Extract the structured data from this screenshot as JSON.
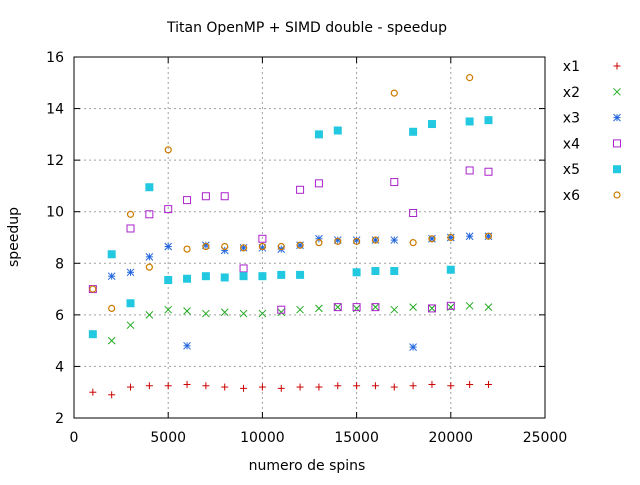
{
  "chart_data": {
    "type": "scatter",
    "title": "Titan OpenMP + SIMD double - speedup",
    "xlabel": "numero de spins",
    "ylabel": "speedup",
    "xlim": [
      0,
      25000
    ],
    "ylim": [
      2,
      16
    ],
    "xticks": [
      0,
      5000,
      10000,
      15000,
      20000,
      25000
    ],
    "yticks": [
      2,
      4,
      6,
      8,
      10,
      12,
      14,
      16
    ],
    "xtick_labels": [
      "0",
      "5000",
      "10000",
      "15000",
      "20000",
      "25000"
    ],
    "ytick_labels": [
      "2",
      "4",
      "6",
      "8",
      "10",
      "12",
      "14",
      "16"
    ],
    "grid": true,
    "legend_position": "outside-right",
    "series": [
      {
        "name": "x1",
        "marker": "plus",
        "color": "#cc0000",
        "x": [
          1000,
          2000,
          3000,
          4000,
          5000,
          6000,
          7000,
          8000,
          9000,
          10000,
          11000,
          12000,
          13000,
          14000,
          15000,
          16000,
          17000,
          18000,
          19000,
          20000,
          21000,
          22000
        ],
        "y": [
          3.0,
          2.9,
          3.2,
          3.25,
          3.25,
          3.3,
          3.25,
          3.2,
          3.15,
          3.2,
          3.15,
          3.2,
          3.2,
          3.25,
          3.25,
          3.25,
          3.2,
          3.25,
          3.3,
          3.25,
          3.3,
          3.3
        ]
      },
      {
        "name": "x2",
        "marker": "cross",
        "color": "#22aa22",
        "x": [
          2000,
          3000,
          4000,
          5000,
          6000,
          7000,
          8000,
          9000,
          10000,
          11000,
          12000,
          13000,
          14000,
          15000,
          16000,
          17000,
          18000,
          19000,
          20000,
          21000,
          22000
        ],
        "y": [
          5.0,
          5.6,
          6.0,
          6.2,
          6.15,
          6.05,
          6.1,
          6.05,
          6.05,
          6.1,
          6.2,
          6.25,
          6.3,
          6.25,
          6.3,
          6.2,
          6.3,
          6.25,
          6.3,
          6.35,
          6.3
        ]
      },
      {
        "name": "x3",
        "marker": "star",
        "color": "#2266dd",
        "x": [
          2000,
          3000,
          4000,
          5000,
          6000,
          7000,
          8000,
          9000,
          10000,
          11000,
          12000,
          13000,
          14000,
          15000,
          16000,
          17000,
          18000,
          19000,
          20000,
          21000,
          22000
        ],
        "y": [
          7.5,
          7.65,
          8.25,
          8.65,
          4.8,
          8.7,
          8.5,
          8.6,
          8.6,
          8.55,
          8.7,
          8.95,
          8.9,
          8.9,
          8.9,
          8.9,
          4.75,
          8.95,
          9.0,
          9.05,
          9.05
        ]
      },
      {
        "name": "x4",
        "marker": "square-open",
        "color": "#aa22cc",
        "x": [
          1000,
          3000,
          4000,
          5000,
          6000,
          7000,
          8000,
          9000,
          10000,
          11000,
          12000,
          13000,
          14000,
          15000,
          16000,
          17000,
          18000,
          19000,
          20000,
          21000,
          22000
        ],
        "y": [
          7.0,
          9.35,
          9.9,
          10.1,
          10.45,
          10.6,
          10.6,
          7.8,
          8.95,
          6.2,
          10.85,
          11.1,
          6.3,
          6.3,
          6.3,
          11.15,
          9.95,
          6.25,
          6.35,
          11.6,
          11.55
        ]
      },
      {
        "name": "x5",
        "marker": "square-filled",
        "color": "#22c8e0",
        "x": [
          1000,
          2000,
          3000,
          4000,
          5000,
          6000,
          7000,
          8000,
          9000,
          10000,
          11000,
          12000,
          13000,
          14000,
          15000,
          16000,
          17000,
          18000,
          19000,
          20000,
          21000,
          22000
        ],
        "y": [
          5.25,
          8.35,
          6.45,
          10.95,
          7.35,
          7.4,
          7.5,
          7.45,
          7.5,
          7.5,
          7.55,
          7.55,
          13.0,
          13.15,
          7.65,
          7.7,
          7.7,
          13.1,
          13.4,
          7.75,
          13.5,
          13.55
        ]
      },
      {
        "name": "x6",
        "marker": "circle-open",
        "color": "#cc7a00",
        "x": [
          1000,
          2000,
          3000,
          4000,
          5000,
          6000,
          7000,
          8000,
          9000,
          10000,
          11000,
          12000,
          13000,
          14000,
          15000,
          16000,
          17000,
          18000,
          19000,
          20000,
          21000,
          22000
        ],
        "y": [
          7.0,
          6.25,
          9.9,
          7.85,
          12.4,
          8.55,
          8.65,
          8.65,
          8.6,
          8.65,
          8.65,
          8.7,
          8.8,
          8.85,
          8.85,
          8.9,
          14.6,
          8.8,
          8.95,
          9.0,
          15.2,
          9.05
        ]
      }
    ]
  }
}
